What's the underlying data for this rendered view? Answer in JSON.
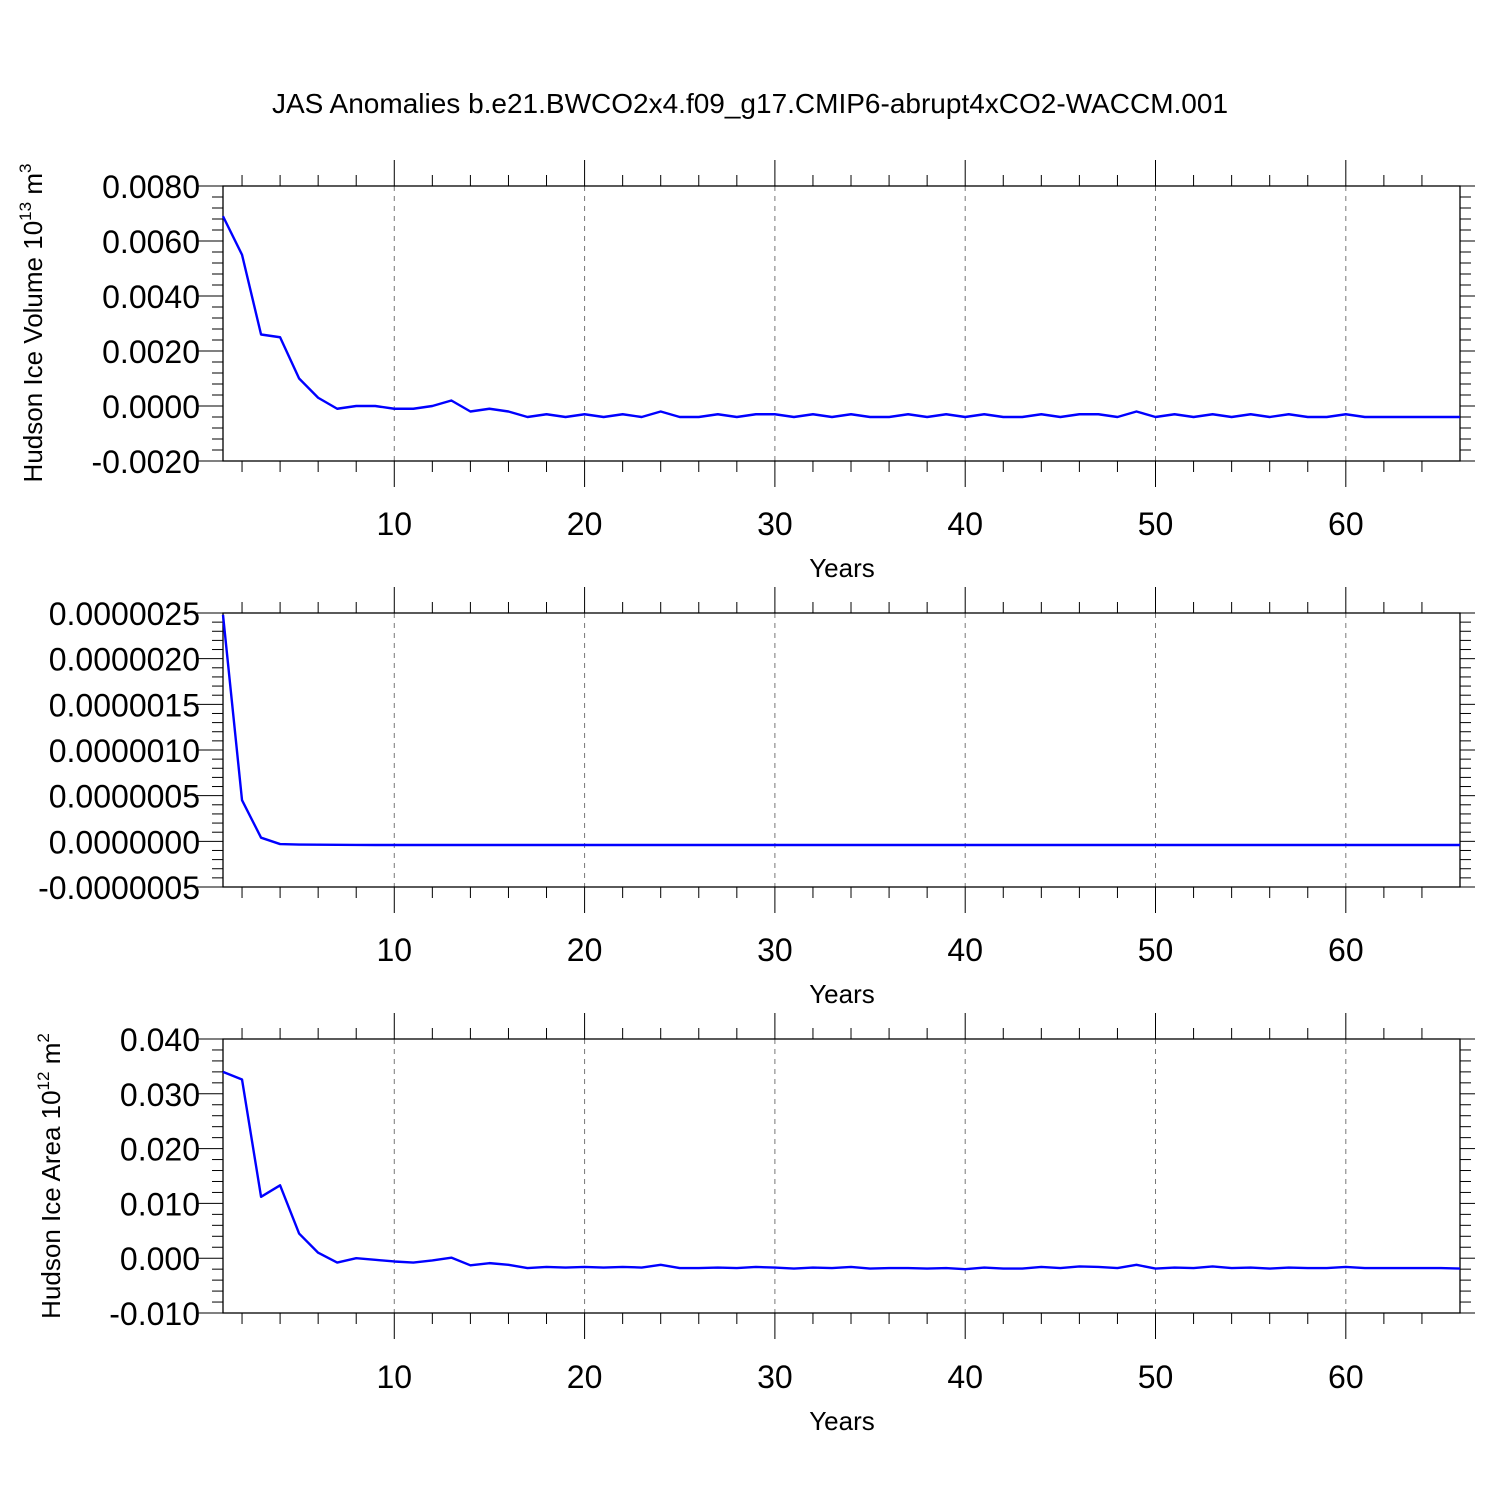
{
  "title": "JAS Anomalies b.e21.BWCO2x4.f09_g17.CMIP6-abrupt4xCO2-WACCM.001",
  "colors": {
    "series": "#0000ff",
    "axes": "#000000",
    "grid": "#777777"
  },
  "chart_data": [
    {
      "type": "line",
      "xlabel": "Years",
      "ylabel": "Hudson Ice Volume 10",
      "ylabel_exponent": "13",
      "ylabel_unit": " m",
      "ylabel_unit_exponent": "3",
      "xlim": [
        1,
        66
      ],
      "ylim": [
        -0.002,
        0.008
      ],
      "xticks": [
        "10",
        "20",
        "30",
        "40",
        "50",
        "60"
      ],
      "yticks": [
        "0.0080",
        "0.0060",
        "0.0040",
        "0.0020",
        "0.0000",
        "-0.0020"
      ],
      "ytick_values": [
        0.008,
        0.006,
        0.004,
        0.002,
        0.0,
        -0.002
      ],
      "grid": "vertical dashed at major x ticks",
      "x": [
        1,
        2,
        3,
        4,
        5,
        6,
        7,
        8,
        9,
        10,
        11,
        12,
        13,
        14,
        15,
        16,
        17,
        18,
        19,
        20,
        21,
        22,
        23,
        24,
        25,
        26,
        27,
        28,
        29,
        30,
        31,
        32,
        33,
        34,
        35,
        36,
        37,
        38,
        39,
        40,
        41,
        42,
        43,
        44,
        45,
        46,
        47,
        48,
        49,
        50,
        51,
        52,
        53,
        54,
        55,
        56,
        57,
        58,
        59,
        60,
        61,
        62,
        63,
        64,
        65,
        66
      ],
      "values": [
        0.0069,
        0.0055,
        0.0026,
        0.0025,
        0.001,
        0.0003,
        -0.0001,
        0.0,
        0.0,
        -0.0001,
        -0.0001,
        0.0,
        0.0002,
        -0.0002,
        -0.0001,
        -0.0002,
        -0.0004,
        -0.0003,
        -0.0004,
        -0.0003,
        -0.0004,
        -0.0003,
        -0.0004,
        -0.0002,
        -0.0004,
        -0.0004,
        -0.0003,
        -0.0004,
        -0.0003,
        -0.0003,
        -0.0004,
        -0.0003,
        -0.0004,
        -0.0003,
        -0.0004,
        -0.0004,
        -0.0003,
        -0.0004,
        -0.0003,
        -0.0004,
        -0.0003,
        -0.0004,
        -0.0004,
        -0.0003,
        -0.0004,
        -0.0003,
        -0.0003,
        -0.0004,
        -0.0002,
        -0.0004,
        -0.0003,
        -0.0004,
        -0.0003,
        -0.0004,
        -0.0003,
        -0.0004,
        -0.0003,
        -0.0004,
        -0.0004,
        -0.0003,
        -0.0004,
        -0.0004,
        -0.0004,
        -0.0004,
        -0.0004,
        -0.0004
      ]
    },
    {
      "type": "line",
      "xlabel": "Years",
      "ylabel": "",
      "xlim": [
        1,
        66
      ],
      "ylim": [
        -5e-07,
        2.5e-06
      ],
      "xticks": [
        "10",
        "20",
        "30",
        "40",
        "50",
        "60"
      ],
      "yticks": [
        "0.0000025",
        "0.0000020",
        "0.0000015",
        "0.0000010",
        "0.0000005",
        "0.0000000",
        "-0.0000005"
      ],
      "ytick_values": [
        2.5e-06,
        2e-06,
        1.5e-06,
        1e-06,
        5e-07,
        0.0,
        -5e-07
      ],
      "grid": "vertical dashed at major x ticks",
      "x": [
        1,
        2,
        3,
        4,
        5,
        6,
        7,
        8,
        9,
        10,
        11,
        12,
        13,
        14,
        15,
        16,
        17,
        18,
        19,
        20,
        21,
        22,
        23,
        24,
        25,
        26,
        27,
        28,
        29,
        30,
        31,
        32,
        33,
        34,
        35,
        36,
        37,
        38,
        39,
        40,
        41,
        42,
        43,
        44,
        45,
        46,
        47,
        48,
        49,
        50,
        51,
        52,
        53,
        54,
        55,
        56,
        57,
        58,
        59,
        60,
        61,
        62,
        63,
        64,
        65,
        66
      ],
      "values": [
        2.48e-06,
        4.5e-07,
        4e-08,
        -3e-08,
        -3.5e-08,
        -3.7e-08,
        -3.8e-08,
        -3.9e-08,
        -4e-08,
        -4e-08,
        -4e-08,
        -4e-08,
        -4e-08,
        -4e-08,
        -4e-08,
        -4e-08,
        -4e-08,
        -4e-08,
        -4e-08,
        -4e-08,
        -4e-08,
        -4e-08,
        -4e-08,
        -4e-08,
        -4e-08,
        -4e-08,
        -4e-08,
        -4e-08,
        -4e-08,
        -4e-08,
        -4e-08,
        -4e-08,
        -4e-08,
        -4e-08,
        -4e-08,
        -4e-08,
        -4e-08,
        -4e-08,
        -4e-08,
        -4e-08,
        -4e-08,
        -4e-08,
        -4e-08,
        -4e-08,
        -4e-08,
        -4e-08,
        -4e-08,
        -4e-08,
        -4e-08,
        -4e-08,
        -4e-08,
        -4e-08,
        -4e-08,
        -4e-08,
        -4e-08,
        -4e-08,
        -4e-08,
        -4e-08,
        -4e-08,
        -4e-08,
        -4e-08,
        -4e-08,
        -4e-08,
        -4e-08,
        -4e-08,
        -4e-08
      ]
    },
    {
      "type": "line",
      "xlabel": "Years",
      "ylabel": "Hudson Ice Area 10",
      "ylabel_exponent": "12",
      "ylabel_unit": " m",
      "ylabel_unit_exponent": "2",
      "xlim": [
        1,
        66
      ],
      "ylim": [
        -0.01,
        0.04
      ],
      "xticks": [
        "10",
        "20",
        "30",
        "40",
        "50",
        "60"
      ],
      "yticks": [
        "0.040",
        "0.030",
        "0.020",
        "0.010",
        "0.000",
        "-0.010"
      ],
      "ytick_values": [
        0.04,
        0.03,
        0.02,
        0.01,
        0.0,
        -0.01
      ],
      "grid": "vertical dashed at major x ticks",
      "x": [
        1,
        2,
        3,
        4,
        5,
        6,
        7,
        8,
        9,
        10,
        11,
        12,
        13,
        14,
        15,
        16,
        17,
        18,
        19,
        20,
        21,
        22,
        23,
        24,
        25,
        26,
        27,
        28,
        29,
        30,
        31,
        32,
        33,
        34,
        35,
        36,
        37,
        38,
        39,
        40,
        41,
        42,
        43,
        44,
        45,
        46,
        47,
        48,
        49,
        50,
        51,
        52,
        53,
        54,
        55,
        56,
        57,
        58,
        59,
        60,
        61,
        62,
        63,
        64,
        65,
        66
      ],
      "values": [
        0.034,
        0.0326,
        0.0112,
        0.0133,
        0.0045,
        0.001,
        -0.0008,
        0.0,
        -0.0003,
        -0.0006,
        -0.0008,
        -0.0004,
        0.0001,
        -0.0013,
        -0.0009,
        -0.0012,
        -0.0018,
        -0.0016,
        -0.0017,
        -0.0016,
        -0.0017,
        -0.0016,
        -0.0017,
        -0.0012,
        -0.0018,
        -0.0018,
        -0.0017,
        -0.0018,
        -0.0016,
        -0.0017,
        -0.0019,
        -0.0017,
        -0.0018,
        -0.0016,
        -0.0019,
        -0.0018,
        -0.0018,
        -0.0019,
        -0.0018,
        -0.002,
        -0.0017,
        -0.0019,
        -0.0019,
        -0.0016,
        -0.0018,
        -0.0015,
        -0.0016,
        -0.0018,
        -0.0012,
        -0.0019,
        -0.0017,
        -0.0018,
        -0.0015,
        -0.0018,
        -0.0017,
        -0.0019,
        -0.0017,
        -0.0018,
        -0.0018,
        -0.0016,
        -0.0018,
        -0.0018,
        -0.0018,
        -0.0018,
        -0.0018,
        -0.0019
      ]
    }
  ]
}
